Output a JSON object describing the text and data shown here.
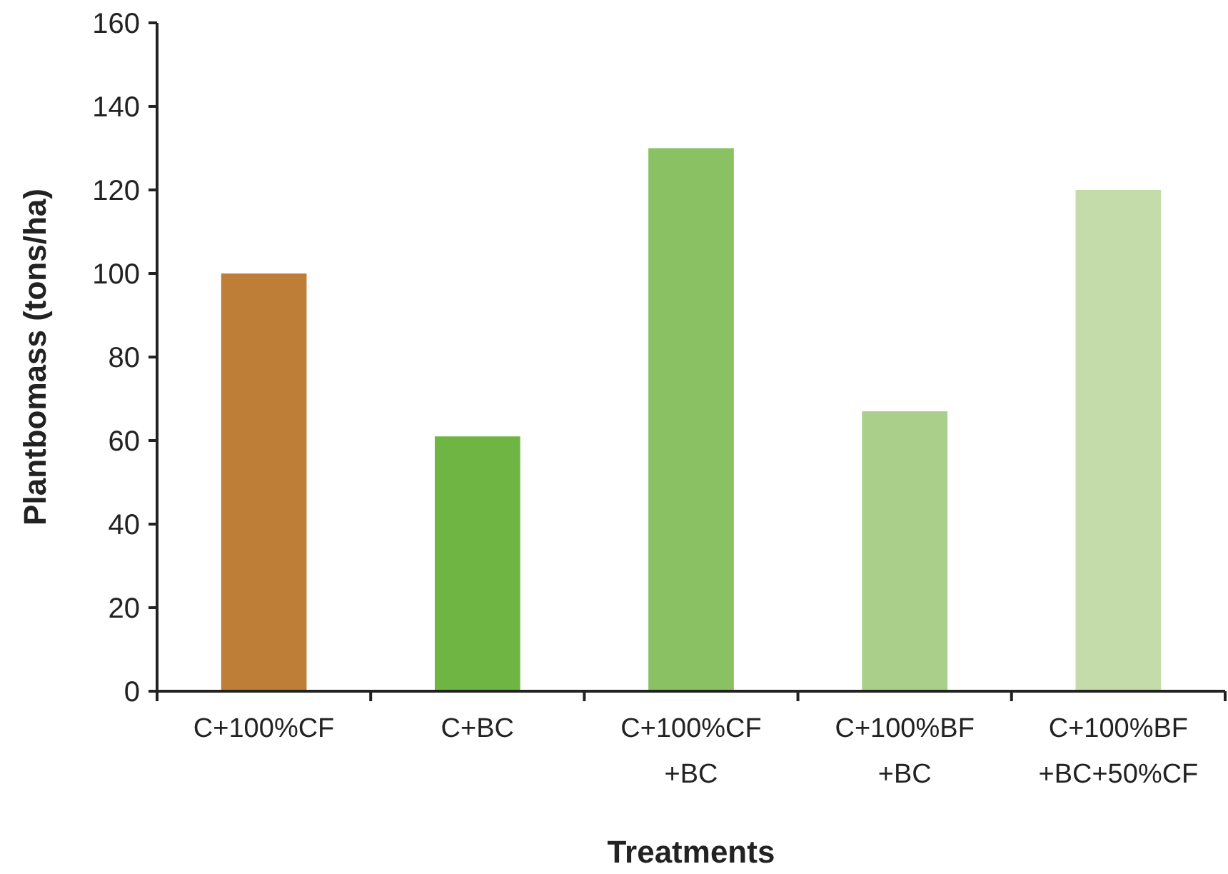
{
  "chart_data": {
    "type": "bar",
    "xlabel": "Treatments",
    "ylabel": "Plantbomass (tons/ha)",
    "categories": [
      "C+100%CF",
      "C+BC",
      "C+100%CF\n+BC",
      "C+100%BF\n+BC",
      "C+100%BF\n+BC+50%CF"
    ],
    "values": [
      100,
      61,
      130,
      67,
      120
    ],
    "colors": [
      "#bf7e37",
      "#6fb543",
      "#8ac162",
      "#a9cf8a",
      "#c4dca9"
    ],
    "ylim": [
      0,
      160
    ],
    "yticks": [
      0,
      20,
      40,
      60,
      80,
      100,
      120,
      140,
      160
    ],
    "grid": false
  }
}
